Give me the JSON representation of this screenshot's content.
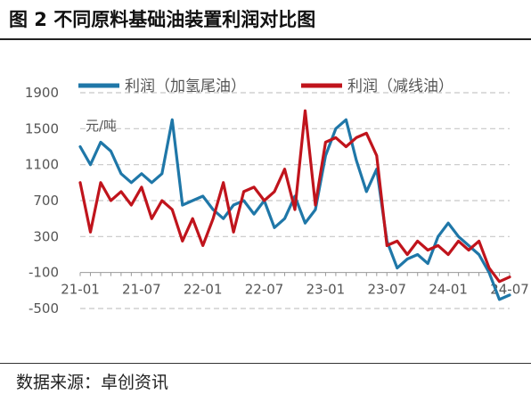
{
  "header": {
    "title": "图 2  不同原料基础油装置利润对比图"
  },
  "footer": {
    "source": "数据来源：卓创资讯"
  },
  "colors": {
    "blue": "#1F77A8",
    "red": "#C0141C",
    "grid": "#c8c8c8",
    "axis": "#999999",
    "text": "#555555"
  },
  "chart_data": {
    "type": "line",
    "title": "",
    "ylabel": "元/吨",
    "xlabel": "",
    "ylim": [
      -500,
      1900
    ],
    "yticks": [
      1900,
      1500,
      1100,
      700,
      300,
      -100,
      -500
    ],
    "x_range": [
      "2021-01",
      "2024-07"
    ],
    "xtick_labels": [
      "21-01",
      "21-07",
      "22-01",
      "22-07",
      "23-01",
      "23-07",
      "24-01",
      "24-07"
    ],
    "grid": true,
    "legend_position": "top",
    "series": [
      {
        "name": "利润（加氢尾油）",
        "color": "blue",
        "points": [
          [
            "2021-01",
            1300
          ],
          [
            "2021-02",
            1100
          ],
          [
            "2021-03",
            1350
          ],
          [
            "2021-04",
            1250
          ],
          [
            "2021-05",
            1000
          ],
          [
            "2021-06",
            900
          ],
          [
            "2021-07",
            1000
          ],
          [
            "2021-08",
            900
          ],
          [
            "2021-09",
            1000
          ],
          [
            "2021-10",
            1600
          ],
          [
            "2021-11",
            650
          ],
          [
            "2021-12",
            700
          ],
          [
            "2022-01",
            750
          ],
          [
            "2022-02",
            600
          ],
          [
            "2022-03",
            500
          ],
          [
            "2022-04",
            650
          ],
          [
            "2022-05",
            700
          ],
          [
            "2022-06",
            550
          ],
          [
            "2022-07",
            700
          ],
          [
            "2022-08",
            400
          ],
          [
            "2022-09",
            500
          ],
          [
            "2022-10",
            750
          ],
          [
            "2022-11",
            450
          ],
          [
            "2022-12",
            600
          ],
          [
            "2023-01",
            1200
          ],
          [
            "2023-02",
            1500
          ],
          [
            "2023-03",
            1600
          ],
          [
            "2023-04",
            1150
          ],
          [
            "2023-05",
            800
          ],
          [
            "2023-06",
            1050
          ],
          [
            "2023-07",
            250
          ],
          [
            "2023-08",
            -50
          ],
          [
            "2023-09",
            50
          ],
          [
            "2023-10",
            100
          ],
          [
            "2023-11",
            0
          ],
          [
            "2023-12",
            300
          ],
          [
            "2024-01",
            450
          ],
          [
            "2024-02",
            300
          ],
          [
            "2024-03",
            200
          ],
          [
            "2024-04",
            100
          ],
          [
            "2024-05",
            -100
          ],
          [
            "2024-06",
            -400
          ],
          [
            "2024-07",
            -350
          ]
        ]
      },
      {
        "name": "利润（减线油）",
        "color": "red",
        "points": [
          [
            "2021-01",
            900
          ],
          [
            "2021-02",
            350
          ],
          [
            "2021-03",
            900
          ],
          [
            "2021-04",
            700
          ],
          [
            "2021-05",
            800
          ],
          [
            "2021-06",
            650
          ],
          [
            "2021-07",
            850
          ],
          [
            "2021-08",
            500
          ],
          [
            "2021-09",
            700
          ],
          [
            "2021-10",
            600
          ],
          [
            "2021-11",
            250
          ],
          [
            "2021-12",
            500
          ],
          [
            "2022-01",
            200
          ],
          [
            "2022-02",
            500
          ],
          [
            "2022-03",
            900
          ],
          [
            "2022-04",
            350
          ],
          [
            "2022-05",
            800
          ],
          [
            "2022-06",
            850
          ],
          [
            "2022-07",
            700
          ],
          [
            "2022-08",
            800
          ],
          [
            "2022-09",
            1050
          ],
          [
            "2022-10",
            600
          ],
          [
            "2022-11",
            1700
          ],
          [
            "2022-12",
            650
          ],
          [
            "2023-01",
            1350
          ],
          [
            "2023-02",
            1400
          ],
          [
            "2023-03",
            1300
          ],
          [
            "2023-04",
            1400
          ],
          [
            "2023-05",
            1450
          ],
          [
            "2023-06",
            1200
          ],
          [
            "2023-07",
            200
          ],
          [
            "2023-08",
            250
          ],
          [
            "2023-09",
            100
          ],
          [
            "2023-10",
            250
          ],
          [
            "2023-11",
            150
          ],
          [
            "2023-12",
            200
          ],
          [
            "2024-01",
            100
          ],
          [
            "2024-02",
            250
          ],
          [
            "2024-03",
            150
          ],
          [
            "2024-04",
            250
          ],
          [
            "2024-05",
            -50
          ],
          [
            "2024-06",
            -200
          ],
          [
            "2024-07",
            -150
          ]
        ]
      }
    ]
  }
}
